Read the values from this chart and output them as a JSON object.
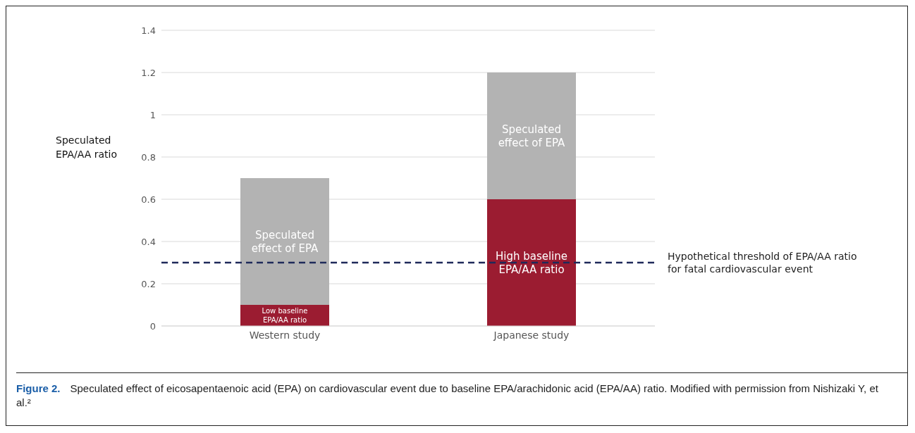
{
  "chart_data": {
    "type": "bar",
    "stacked": true,
    "title": "Figure 2.",
    "ylabel": "Speculated EPA/AA ratio",
    "categories": [
      "Western study",
      "Japanese study"
    ],
    "series": [
      {
        "color": "#9b1c31",
        "values": [
          0.1,
          0.6
        ],
        "value_labels": [
          "Low baseline EPA/AA ratio",
          "High baseline EPA/AA ratio"
        ]
      },
      {
        "color": "#b3b3b3",
        "values": [
          0.6,
          0.6
        ],
        "value_labels": [
          "Speculated effect of EPA",
          "Speculated effect of EPA"
        ]
      }
    ],
    "ylim": [
      0,
      1.4
    ],
    "yticks": [
      0,
      0.2,
      0.4,
      0.6,
      0.8,
      1,
      1.2,
      1.4
    ],
    "grid": "y",
    "legend": false,
    "ref_lines": [
      {
        "axis": "y",
        "value": 0.3,
        "label": "Hypothetical threshold of EPA/AA ratio for fatal cardiovascular event",
        "color": "#1f2a5a",
        "line_style": "dashed"
      }
    ],
    "annotations": [
      "Speculated effect of eicosapentaenoic acid (EPA) on cardiovascular event due to baseline EPA/arachidonic acid (EPA/AA) ratio. Modified with permission from Nishizaki Y, et al.²"
    ]
  }
}
